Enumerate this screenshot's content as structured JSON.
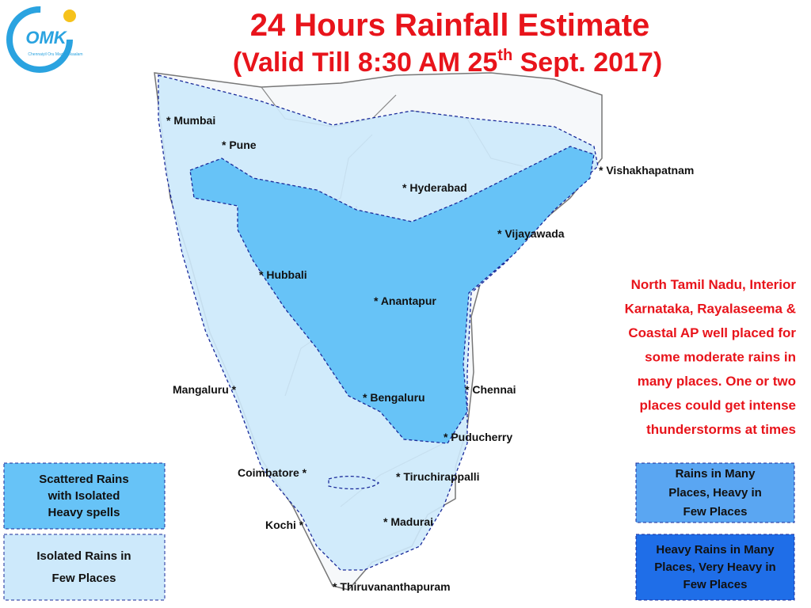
{
  "title": "24 Hours Rainfall Estimate",
  "subtitle": {
    "before": "(Valid Till 8:30 AM 25",
    "sup": "th",
    "after": " Sept. 2017)"
  },
  "logo": {
    "text": "OMK",
    "tagline": "Chennaiyil Oru Mazhaikkaalam"
  },
  "cities": [
    "* Mumbai",
    "* Pune",
    "* Hyderabad",
    "* Vishakhapatnam",
    "* Vijayawada",
    "* Hubbali",
    "* Anantapur",
    "Mangaluru *",
    "* Bengaluru",
    "* Chennai",
    "* Puducherry",
    "Coimbatore *",
    "* Tiruchirappalli",
    "Kochi *",
    "* Madurai",
    "* Thiruvananthapuram"
  ],
  "note": [
    "North Tamil Nadu, Interior",
    "Karnataka, Rayalaseema &",
    "Coastal AP well placed for",
    "some moderate rains in",
    "many places. One or two",
    "places could get intense",
    "thunderstorms at times"
  ],
  "legend": [
    {
      "lines": [
        "Scattered Rains",
        "with Isolated",
        "Heavy spells"
      ]
    },
    {
      "lines": [
        "Isolated Rains in",
        "Few  Places"
      ]
    },
    {
      "lines": [
        "Rains in Many",
        "Places, Heavy in",
        "Few Places"
      ]
    },
    {
      "lines": [
        "Heavy Rains in Many",
        "Places, Very Heavy in",
        "Few Places"
      ]
    }
  ]
}
